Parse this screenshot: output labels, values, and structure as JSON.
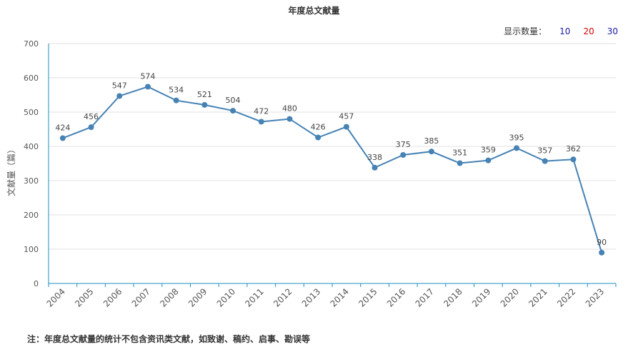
{
  "chart_data": {
    "type": "line",
    "title": "年度总文献量",
    "ylabel": "文献量（篇）",
    "xlabel": "",
    "categories": [
      "2004",
      "2005",
      "2006",
      "2007",
      "2008",
      "2009",
      "2010",
      "2011",
      "2012",
      "2013",
      "2014",
      "2015",
      "2016",
      "2017",
      "2018",
      "2019",
      "2020",
      "2021",
      "2022",
      "2023"
    ],
    "series": [
      {
        "values": [
          424,
          456,
          547,
          574,
          534,
          521,
          504,
          472,
          480,
          426,
          457,
          338,
          375,
          385,
          351,
          359,
          395,
          357,
          362,
          90
        ]
      }
    ],
    "ylim": [
      0,
      700
    ],
    "yticks": [
      0,
      100,
      200,
      300,
      400,
      500,
      600,
      700
    ],
    "grid": true,
    "line_color": "#4682b4"
  },
  "display_count": {
    "label": "显示数量：",
    "options": [
      {
        "text": "10",
        "color": "#1a1aa6"
      },
      {
        "text": "20",
        "color": "#d40000"
      },
      {
        "text": "30",
        "color": "#1a1aa6"
      }
    ]
  },
  "footnote": "注：年度总文献量的统计不包含资讯类文献，如致谢、稿约、启事、勘误等"
}
